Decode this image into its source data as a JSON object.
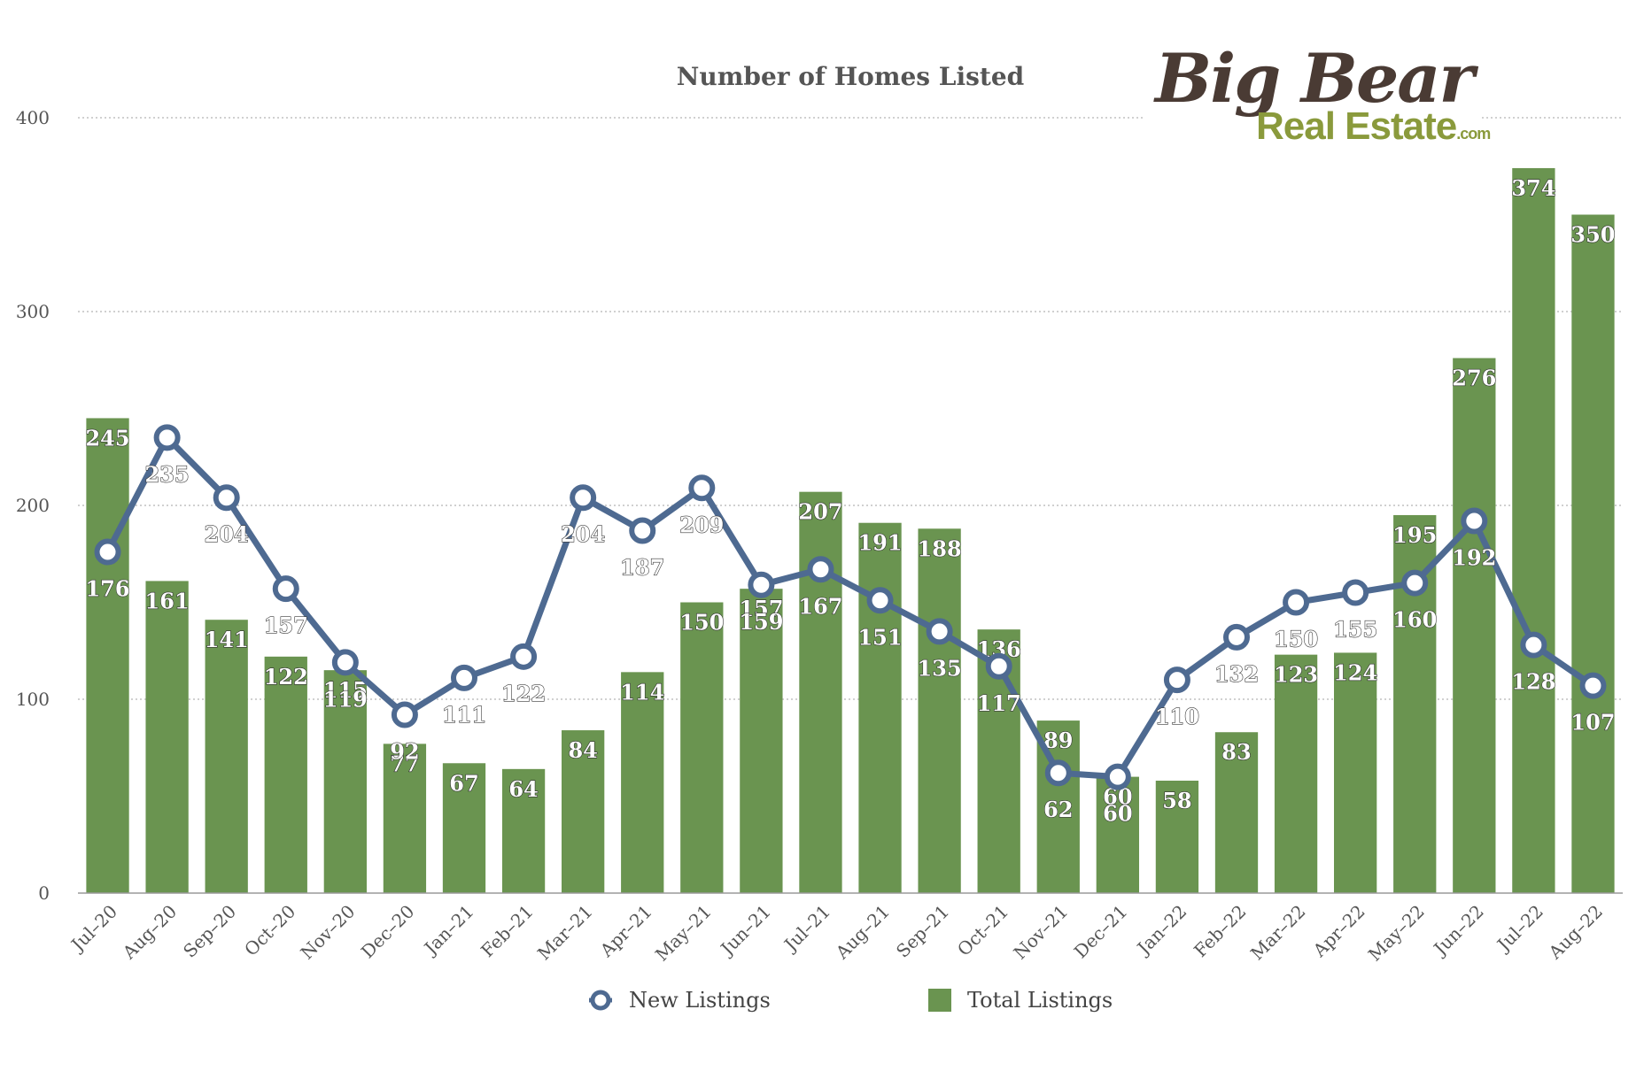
{
  "chart_data": {
    "type": "bar",
    "title": "Number of Homes Listed",
    "categories": [
      "Jul–20",
      "Aug–20",
      "Sep–20",
      "Oct–20",
      "Nov–20",
      "Dec–20",
      "Jan–21",
      "Feb–21",
      "Mar–21",
      "Apr–21",
      "May–21",
      "Jun–21",
      "Jul–21",
      "Aug–21",
      "Sep–21",
      "Oct–21",
      "Nov–21",
      "Dec–21",
      "Jan–22",
      "Feb–22",
      "Mar–22",
      "Apr–22",
      "May–22",
      "Jun–22",
      "Jul–22",
      "Aug–22"
    ],
    "series": [
      {
        "name": "Total Listings",
        "type": "bar",
        "color": "#6a9450",
        "values": [
          245,
          161,
          141,
          122,
          115,
          77,
          67,
          64,
          84,
          114,
          150,
          157,
          207,
          191,
          188,
          136,
          89,
          60,
          58,
          83,
          123,
          124,
          195,
          276,
          374,
          350
        ]
      },
      {
        "name": "New Listings",
        "type": "line",
        "color": "#4e6a91",
        "values": [
          176,
          235,
          204,
          157,
          119,
          92,
          111,
          122,
          204,
          187,
          209,
          159,
          167,
          151,
          135,
          117,
          62,
          60,
          110,
          132,
          150,
          155,
          160,
          192,
          128,
          107
        ]
      }
    ],
    "ylim": [
      0,
      400
    ],
    "yticks": [
      0,
      100,
      200,
      300,
      400
    ],
    "grid": true,
    "legend_position": "bottom"
  },
  "logo": {
    "main": "Big Bear",
    "sub": "Real Estate",
    "suffix": ".com"
  }
}
